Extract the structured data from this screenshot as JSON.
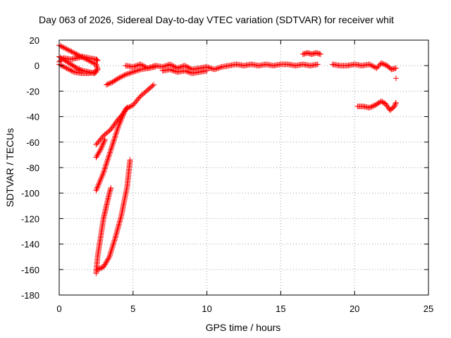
{
  "chart_data": {
    "type": "scatter",
    "title": "Day 063 of 2026, Sidereal Day-to-day VTEC variation (SDTVAR) for receiver whit",
    "xlabel": "GPS time / hours",
    "ylabel": "SDTVAR / TECUs",
    "xlim": [
      0,
      25
    ],
    "ylim": [
      -180,
      20
    ],
    "xticks": [
      0,
      5,
      10,
      15,
      20,
      25
    ],
    "yticks": [
      -180,
      -160,
      -140,
      -120,
      -100,
      -80,
      -60,
      -40,
      -20,
      0,
      20
    ],
    "grid": true,
    "marker": "+",
    "color": "#ff0000",
    "segments": [
      {
        "name": "early-upper-band",
        "points": [
          [
            0.0,
            16
          ],
          [
            0.5,
            13
          ],
          [
            1.0,
            10
          ],
          [
            1.5,
            7
          ],
          [
            2.0,
            4
          ],
          [
            2.5,
            1
          ],
          [
            2.6,
            -3
          ]
        ]
      },
      {
        "name": "early-cluster-a",
        "points": [
          [
            0.0,
            7
          ],
          [
            0.4,
            4
          ],
          [
            0.8,
            1
          ],
          [
            1.2,
            -2
          ],
          [
            1.6,
            -4
          ],
          [
            2.0,
            -5
          ],
          [
            2.4,
            -6
          ],
          [
            2.6,
            -3
          ]
        ]
      },
      {
        "name": "early-cluster-b",
        "points": [
          [
            0.0,
            3
          ],
          [
            0.3,
            6
          ],
          [
            0.8,
            5
          ],
          [
            1.2,
            6
          ],
          [
            1.6,
            7
          ],
          [
            2.0,
            6
          ],
          [
            2.5,
            5
          ],
          [
            2.6,
            4
          ]
        ]
      },
      {
        "name": "early-cluster-c",
        "points": [
          [
            0.0,
            1
          ],
          [
            0.5,
            -2
          ],
          [
            1.0,
            -5
          ],
          [
            1.5,
            -6
          ],
          [
            2.0,
            -6
          ],
          [
            2.5,
            -5
          ],
          [
            2.6,
            -2
          ]
        ]
      },
      {
        "name": "rise-to-zero",
        "points": [
          [
            3.2,
            -15
          ],
          [
            3.6,
            -13
          ],
          [
            4.0,
            -10
          ],
          [
            4.5,
            -7
          ],
          [
            5.0,
            -5
          ],
          [
            5.5,
            -3
          ],
          [
            6.0,
            -2
          ],
          [
            6.5,
            -1
          ]
        ]
      },
      {
        "name": "zero-band",
        "points": [
          [
            4.5,
            0
          ],
          [
            5.0,
            -1
          ],
          [
            5.5,
            1
          ],
          [
            6.0,
            -2
          ],
          [
            6.5,
            0
          ],
          [
            7.0,
            -1
          ],
          [
            7.5,
            1
          ],
          [
            8.0,
            -2
          ],
          [
            8.5,
            0
          ],
          [
            9.0,
            -3
          ],
          [
            9.5,
            -2
          ],
          [
            10.0,
            -1
          ],
          [
            10.5,
            -3
          ],
          [
            11.0,
            -1
          ],
          [
            11.5,
            0
          ],
          [
            12.0,
            1
          ],
          [
            12.5,
            0
          ],
          [
            13.0,
            1
          ],
          [
            13.5,
            0
          ],
          [
            14.0,
            1
          ],
          [
            14.5,
            0
          ],
          [
            15.0,
            1
          ],
          [
            15.5,
            1
          ],
          [
            16.0,
            0
          ],
          [
            16.5,
            1
          ],
          [
            17.0,
            0
          ],
          [
            17.5,
            1
          ]
        ]
      },
      {
        "name": "zero-band-lower",
        "points": [
          [
            7.0,
            -4
          ],
          [
            7.5,
            -3
          ],
          [
            8.0,
            -5
          ],
          [
            8.5,
            -4
          ],
          [
            9.0,
            -6
          ],
          [
            9.5,
            -5
          ],
          [
            10.0,
            -4
          ]
        ]
      },
      {
        "name": "plateau",
        "points": [
          [
            16.5,
            9
          ],
          [
            16.8,
            10
          ],
          [
            17.1,
            9
          ],
          [
            17.4,
            10
          ],
          [
            17.7,
            9
          ]
        ]
      },
      {
        "name": "late-zero-band",
        "points": [
          [
            18.5,
            1
          ],
          [
            19.0,
            0
          ],
          [
            19.5,
            0
          ],
          [
            20.0,
            1
          ],
          [
            20.5,
            0
          ],
          [
            21.0,
            1
          ],
          [
            21.5,
            -2
          ],
          [
            21.8,
            2
          ],
          [
            22.2,
            0
          ],
          [
            22.5,
            -3
          ],
          [
            22.8,
            -2
          ]
        ]
      },
      {
        "name": "late-negative-band",
        "points": [
          [
            20.2,
            -32
          ],
          [
            20.6,
            -32
          ],
          [
            21.0,
            -33
          ],
          [
            21.4,
            -31
          ],
          [
            21.8,
            -28
          ],
          [
            22.1,
            -30
          ],
          [
            22.4,
            -35
          ],
          [
            22.7,
            -32
          ],
          [
            22.8,
            -29
          ]
        ]
      },
      {
        "name": "late-outlier",
        "points": [
          [
            22.8,
            -10
          ]
        ]
      },
      {
        "name": "descent-main",
        "points": [
          [
            2.5,
            -98
          ],
          [
            3.0,
            -84
          ],
          [
            3.5,
            -66
          ],
          [
            4.0,
            -48
          ],
          [
            4.5,
            -34
          ],
          [
            5.0,
            -31
          ],
          [
            5.5,
            -24
          ],
          [
            6.0,
            -19
          ],
          [
            6.4,
            -15
          ]
        ]
      },
      {
        "name": "descent-upper",
        "points": [
          [
            2.5,
            -62
          ],
          [
            3.0,
            -55
          ],
          [
            3.5,
            -50
          ],
          [
            4.0,
            -42
          ],
          [
            4.3,
            -38
          ],
          [
            4.6,
            -33
          ]
        ]
      },
      {
        "name": "descent-mid",
        "points": [
          [
            2.5,
            -72
          ],
          [
            2.8,
            -66
          ],
          [
            3.1,
            -58
          ]
        ]
      },
      {
        "name": "deep-dip-left",
        "points": [
          [
            2.5,
            -163
          ],
          [
            2.6,
            -150
          ],
          [
            2.8,
            -135
          ],
          [
            3.0,
            -120
          ],
          [
            3.2,
            -110
          ],
          [
            3.4,
            -100
          ],
          [
            3.5,
            -96
          ]
        ]
      },
      {
        "name": "deep-dip-right",
        "points": [
          [
            2.6,
            -160
          ],
          [
            3.0,
            -158
          ],
          [
            3.4,
            -150
          ],
          [
            3.8,
            -135
          ],
          [
            4.2,
            -118
          ],
          [
            4.6,
            -95
          ],
          [
            4.8,
            -74
          ]
        ]
      }
    ]
  }
}
